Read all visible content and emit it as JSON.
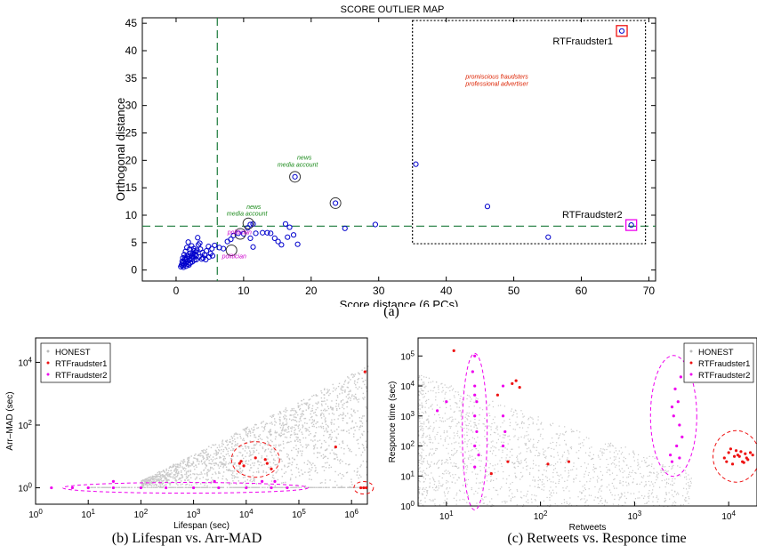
{
  "figure": {
    "caption_a": "(a)",
    "caption_b": "(b) Lifespan vs. Arr-MAD",
    "caption_c": "(c) Retweets vs. Responce time"
  },
  "colors": {
    "honest_blue": "#0000cc",
    "gray_cloud": "#c8c8c8",
    "fraud1_red": "#ee1111",
    "fraud2_magenta": "#ee00ee",
    "threshold_green": "#1a7a3a",
    "annot_red": "#dd2200",
    "annot_green": "#1a8a1a",
    "annot_magenta": "#cc00cc"
  },
  "chart_data": [
    {
      "id": "a",
      "type": "scatter",
      "title": "SCORE OUTLIER MAP",
      "xlabel": "Score distance (6 PCs)",
      "ylabel": "Orthogonal distance",
      "xlim": [
        -5,
        71
      ],
      "ylim": [
        -2,
        46
      ],
      "xticks": [
        0,
        10,
        20,
        30,
        40,
        50,
        60,
        70
      ],
      "yticks": [
        0,
        5,
        10,
        15,
        20,
        25,
        30,
        35,
        40,
        45
      ],
      "grid": false,
      "cutoff_x": 6.1,
      "cutoff_y": 8.0,
      "outlier_box": {
        "x": [
          35,
          69.5
        ],
        "y": [
          4.8,
          45.5
        ]
      },
      "points": [
        [
          0.7,
          0.6
        ],
        [
          0.8,
          0.9
        ],
        [
          0.9,
          1.2
        ],
        [
          1.0,
          0.8
        ],
        [
          1.1,
          1.5
        ],
        [
          1.2,
          1.0
        ],
        [
          1.3,
          1.9
        ],
        [
          1.4,
          1.3
        ],
        [
          1.5,
          0.7
        ],
        [
          1.6,
          2.1
        ],
        [
          1.7,
          1.6
        ],
        [
          1.8,
          1.1
        ],
        [
          1.9,
          2.4
        ],
        [
          2.0,
          1.8
        ],
        [
          2.1,
          1.3
        ],
        [
          2.2,
          2.7
        ],
        [
          2.3,
          2.0
        ],
        [
          2.4,
          1.5
        ],
        [
          2.5,
          3.0
        ],
        [
          2.6,
          2.3
        ],
        [
          2.7,
          1.8
        ],
        [
          2.8,
          2.8
        ],
        [
          2.9,
          3.3
        ],
        [
          3.0,
          2.6
        ],
        [
          3.1,
          3.6
        ],
        [
          1.0,
          2.2
        ],
        [
          1.2,
          2.8
        ],
        [
          1.4,
          3.4
        ],
        [
          1.6,
          4.1
        ],
        [
          1.8,
          5.1
        ],
        [
          2.0,
          3.8
        ],
        [
          2.3,
          4.4
        ],
        [
          2.6,
          3.9
        ],
        [
          3.3,
          4.6
        ],
        [
          3.6,
          3.8
        ],
        [
          3.9,
          3.2
        ],
        [
          4.2,
          2.8
        ],
        [
          4.5,
          3.5
        ],
        [
          4.8,
          4.3
        ],
        [
          5.1,
          3.0
        ],
        [
          5.4,
          2.6
        ],
        [
          5.7,
          4.5
        ],
        [
          3.2,
          5.9
        ],
        [
          3.5,
          4.9
        ],
        [
          4.0,
          2.2
        ],
        [
          4.4,
          1.9
        ],
        [
          4.9,
          2.4
        ],
        [
          5.3,
          3.9
        ],
        [
          0.9,
          1.6
        ],
        [
          1.1,
          0.5
        ],
        [
          1.3,
          2.3
        ],
        [
          1.5,
          1.9
        ],
        [
          1.7,
          2.6
        ],
        [
          1.9,
          0.9
        ],
        [
          2.1,
          3.1
        ],
        [
          2.4,
          2.5
        ],
        [
          2.7,
          3.5
        ],
        [
          3.0,
          1.9
        ],
        [
          3.4,
          2.4
        ],
        [
          3.8,
          2.0
        ],
        [
          6.4,
          4.1
        ],
        [
          7.0,
          3.9
        ],
        [
          7.6,
          5.2
        ],
        [
          8.1,
          5.6
        ],
        [
          8.5,
          6.3
        ],
        [
          9.2,
          6.7
        ],
        [
          10.0,
          6.6
        ],
        [
          10.6,
          7.7
        ],
        [
          11.0,
          8.3
        ],
        [
          11.4,
          8.4
        ],
        [
          11.0,
          5.8
        ],
        [
          11.4,
          4.2
        ],
        [
          11.8,
          6.7
        ],
        [
          12.8,
          6.8
        ],
        [
          13.5,
          6.8
        ],
        [
          14.0,
          6.7
        ],
        [
          14.6,
          5.8
        ],
        [
          15.1,
          5.2
        ],
        [
          15.6,
          4.6
        ],
        [
          16.2,
          8.4
        ],
        [
          16.5,
          6.0
        ],
        [
          16.8,
          7.8
        ],
        [
          17.4,
          6.4
        ],
        [
          17.6,
          17.0
        ],
        [
          18.0,
          4.7
        ],
        [
          23.6,
          12.2
        ],
        [
          25.0,
          7.6
        ],
        [
          29.5,
          8.3
        ],
        [
          35.5,
          19.3
        ],
        [
          46.1,
          11.6
        ],
        [
          55.1,
          6.0
        ],
        [
          66.0,
          43.6
        ],
        [
          67.4,
          8.2
        ]
      ],
      "circled_points": [
        [
          8.2,
          3.6
        ],
        [
          10.7,
          8.5
        ],
        [
          17.6,
          17.0
        ],
        [
          23.6,
          12.2
        ],
        [
          9.5,
          6.6
        ]
      ],
      "fraudster_labels": [
        {
          "name": "RTFraudster1",
          "x": 66.0,
          "y": 43.6,
          "color": "red"
        },
        {
          "name": "RTFraudster2",
          "x": 67.4,
          "y": 8.2,
          "color": "magenta"
        }
      ],
      "annotations": [
        {
          "text": "promiscious fraudsters",
          "x": 47.5,
          "y": 34.9,
          "color": "red"
        },
        {
          "text": "professional advertiser",
          "x": 47.5,
          "y": 33.6,
          "color": "red"
        },
        {
          "text": "news",
          "x": 19.0,
          "y": 20.1,
          "color": "green"
        },
        {
          "text": "media account",
          "x": 18.0,
          "y": 18.8,
          "color": "green"
        },
        {
          "text": "news",
          "x": 11.5,
          "y": 11.1,
          "color": "green"
        },
        {
          "text": "media account",
          "x": 10.5,
          "y": 9.9,
          "color": "green"
        },
        {
          "text": "politician",
          "x": 9.4,
          "y": 6.5,
          "color": "magenta"
        },
        {
          "text": "politician",
          "x": 8.6,
          "y": 2.1,
          "color": "magenta"
        }
      ]
    },
    {
      "id": "b",
      "type": "scatter",
      "xlabel": "Lifespan (sec)",
      "ylabel": "Arr–MAD (sec)",
      "xscale": "log",
      "yscale": "log",
      "xlim": [
        1,
        2000000
      ],
      "ylim": [
        0.3,
        60000
      ],
      "xticks": [
        1,
        10,
        100,
        1000,
        10000,
        100000,
        1000000
      ],
      "xticklabels": [
        "10^0",
        "10^1",
        "10^2",
        "10^3",
        "10^4",
        "10^5",
        "10^6"
      ],
      "yticks": [
        1,
        100,
        10000
      ],
      "yticklabels": [
        "10^0",
        "10^2",
        "10^4"
      ],
      "legend": {
        "placement": "top-left",
        "entries": [
          "HONEST",
          "RTFraudster1",
          "RTFraudster2"
        ]
      },
      "series": [
        {
          "name": "RTFraudster1",
          "color": "red",
          "points": [
            [
              7500,
              6
            ],
            [
              8000,
              7
            ],
            [
              9000,
              5
            ],
            [
              15000,
              9
            ],
            [
              23000,
              8
            ],
            [
              25000,
              6
            ],
            [
              30000,
              4
            ],
            [
              500000,
              20
            ],
            [
              1500000,
              1
            ],
            [
              1700000,
              1
            ],
            [
              1900000,
              1
            ],
            [
              1800000,
              5000
            ]
          ]
        },
        {
          "name": "RTFraudster2",
          "color": "magenta",
          "points": [
            [
              2,
              1
            ],
            [
              5,
              1
            ],
            [
              10,
              1
            ],
            [
              30,
              1
            ],
            [
              100,
              1
            ],
            [
              300,
              1
            ],
            [
              1000,
              1
            ],
            [
              3000,
              1
            ],
            [
              10000,
              1
            ],
            [
              30000,
              1
            ],
            [
              60000,
              1
            ],
            [
              30,
              1.6
            ],
            [
              2500,
              1.6
            ],
            [
              20000,
              1.6
            ],
            [
              35000,
              1.6
            ]
          ]
        }
      ],
      "clusters": [
        {
          "label": "",
          "center": [
            700,
            1
          ],
          "half_width_decades": 2,
          "color": "magenta"
        },
        {
          "label": "",
          "center": [
            15000,
            8
          ],
          "half_width_decades": 0.6,
          "color": "red"
        },
        {
          "label": "",
          "center": [
            1700000,
            1
          ],
          "half_width_decades": 0.2,
          "color": "red"
        }
      ]
    },
    {
      "id": "c",
      "type": "scatter",
      "xlabel": "Retweets",
      "ylabel": "Responce time (sec)",
      "xscale": "log",
      "yscale": "log",
      "xlim": [
        5,
        20000
      ],
      "ylim": [
        1,
        400000
      ],
      "xticks": [
        10,
        100,
        1000,
        10000
      ],
      "xticklabels": [
        "10^1",
        "10^2",
        "10^3",
        "10^4"
      ],
      "yticks": [
        1,
        10,
        100,
        1000,
        10000,
        100000
      ],
      "yticklabels": [
        "10^0",
        "10^1",
        "10^2",
        "10^3",
        "10^4",
        "10^5"
      ],
      "legend": {
        "placement": "top-right",
        "entries": [
          "HONEST",
          "RTFraudster1",
          "RTFraudster2"
        ]
      },
      "series": [
        {
          "name": "RTFraudster1",
          "color": "red",
          "points": [
            [
              9000,
              40
            ],
            [
              10000,
              60
            ],
            [
              11000,
              25
            ],
            [
              12000,
              70
            ],
            [
              13000,
              45
            ],
            [
              14000,
              30
            ],
            [
              15000,
              55
            ],
            [
              16000,
              35
            ],
            [
              9500,
              30
            ],
            [
              12500,
              50
            ],
            [
              13500,
              65
            ],
            [
              15500,
              40
            ],
            [
              17000,
              60
            ],
            [
              10500,
              80
            ],
            [
              14500,
              28
            ],
            [
              11500,
              45
            ],
            [
              18000,
              50
            ],
            [
              200,
              30
            ],
            [
              120,
              25
            ],
            [
              50,
              12000
            ],
            [
              55,
              15000
            ],
            [
              60,
              9000
            ],
            [
              35,
              5000
            ],
            [
              45,
              30
            ],
            [
              30,
              12
            ],
            [
              12,
              150000
            ]
          ]
        },
        {
          "name": "RTFraudster2",
          "color": "magenta",
          "points": [
            [
              20,
              20
            ],
            [
              20,
              100
            ],
            [
              20,
              1000
            ],
            [
              20,
              10000
            ],
            [
              20,
              100000
            ],
            [
              21,
              300
            ],
            [
              21,
              3000
            ],
            [
              19,
              30000
            ],
            [
              22,
              50
            ],
            [
              20,
              5000
            ],
            [
              40,
              100
            ],
            [
              40,
              1000
            ],
            [
              40,
              10000
            ],
            [
              42,
              300
            ],
            [
              2500,
              30
            ],
            [
              2800,
              100
            ],
            [
              3000,
              500
            ],
            [
              2600,
              1000
            ],
            [
              2900,
              3000
            ],
            [
              2700,
              8000
            ],
            [
              3100,
              20000
            ],
            [
              2400,
              50
            ],
            [
              3200,
              200
            ],
            [
              2500,
              2000
            ],
            [
              3000,
              40
            ],
            [
              10,
              3000
            ],
            [
              8,
              1500
            ]
          ]
        }
      ],
      "clusters": [
        {
          "label": "",
          "center": [
            20,
            300
          ],
          "color": "magenta"
        },
        {
          "label": "",
          "center": [
            2600,
            1000
          ],
          "color": "magenta"
        },
        {
          "label": "",
          "center": [
            12000,
            45
          ],
          "color": "red"
        }
      ]
    }
  ]
}
